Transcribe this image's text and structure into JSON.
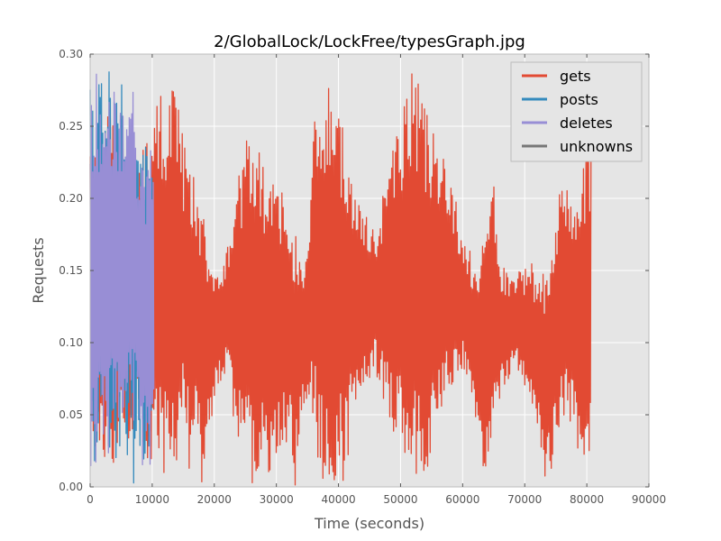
{
  "chart_data": {
    "type": "line",
    "title": "2/GlobalLock/LockFree/typesGraph.jpg",
    "xlabel": "Time (seconds)",
    "ylabel": "Requests",
    "xlim": [
      0,
      90000
    ],
    "ylim": [
      0.0,
      0.3
    ],
    "x_ticks": [
      "0",
      "10000",
      "20000",
      "30000",
      "40000",
      "50000",
      "60000",
      "70000",
      "80000",
      "90000"
    ],
    "y_ticks": [
      "0.00",
      "0.05",
      "0.10",
      "0.15",
      "0.20",
      "0.25",
      "0.30"
    ],
    "grid": true,
    "legend_position": "top-right",
    "series": [
      {
        "name": "gets",
        "color": "#E24A33",
        "x": [
          0,
          1000,
          2000,
          3000,
          4000,
          5000,
          6000,
          7000,
          8000,
          9000,
          10000,
          11000,
          12000,
          13000,
          14000,
          15000,
          16000,
          17000,
          18000,
          19000,
          20000,
          21000,
          22000,
          23000,
          24000,
          25000,
          26000,
          27000,
          28000,
          29000,
          30000,
          31000,
          32000,
          33000,
          34000,
          35000,
          36000,
          37000,
          38000,
          39000,
          40000,
          41000,
          42000,
          43000,
          44000,
          45000,
          46000,
          47000,
          48000,
          49000,
          50000,
          51000,
          52000,
          53000,
          54000,
          55000,
          56000,
          57000,
          58000,
          59000,
          60000,
          61000,
          62000,
          63000,
          64000,
          65000,
          66000,
          67000,
          68000,
          69000,
          70000,
          71000,
          72000,
          73000,
          74000,
          75000,
          76000,
          77000,
          78000,
          79000,
          80000,
          80700
        ],
        "lo": [
          0.02,
          0.01,
          0.03,
          0.0,
          0.02,
          0.0,
          0.03,
          0.04,
          0.05,
          0.02,
          0.0,
          0.01,
          0.0,
          0.0,
          0.02,
          0.04,
          0.01,
          0.04,
          0.0,
          0.03,
          0.06,
          0.07,
          0.08,
          0.05,
          0.02,
          0.01,
          0.0,
          0.01,
          0.02,
          0.0,
          0.02,
          0.03,
          0.03,
          0.0,
          0.05,
          0.06,
          0.04,
          0.0,
          0.01,
          0.0,
          0.01,
          0.0,
          0.03,
          0.05,
          0.06,
          0.07,
          0.08,
          0.06,
          0.05,
          0.03,
          0.02,
          0.01,
          0.0,
          0.0,
          0.01,
          0.02,
          0.04,
          0.05,
          0.06,
          0.07,
          0.08,
          0.07,
          0.05,
          0.02,
          0.0,
          0.04,
          0.06,
          0.07,
          0.08,
          0.08,
          0.07,
          0.06,
          0.04,
          0.01,
          0.0,
          0.03,
          0.05,
          0.04,
          0.03,
          0.02,
          0.01,
          0.03
        ],
        "hi": [
          0.24,
          0.23,
          0.25,
          0.26,
          0.25,
          0.27,
          0.24,
          0.23,
          0.24,
          0.25,
          0.25,
          0.27,
          0.28,
          0.28,
          0.27,
          0.24,
          0.23,
          0.22,
          0.2,
          0.17,
          0.15,
          0.15,
          0.17,
          0.18,
          0.22,
          0.24,
          0.25,
          0.26,
          0.22,
          0.22,
          0.21,
          0.21,
          0.19,
          0.18,
          0.15,
          0.17,
          0.25,
          0.28,
          0.27,
          0.29,
          0.27,
          0.25,
          0.23,
          0.21,
          0.2,
          0.18,
          0.18,
          0.2,
          0.22,
          0.24,
          0.26,
          0.28,
          0.29,
          0.28,
          0.26,
          0.26,
          0.24,
          0.23,
          0.21,
          0.2,
          0.17,
          0.17,
          0.15,
          0.16,
          0.2,
          0.21,
          0.16,
          0.15,
          0.15,
          0.15,
          0.15,
          0.16,
          0.14,
          0.15,
          0.17,
          0.2,
          0.21,
          0.21,
          0.2,
          0.22,
          0.23,
          0.25
        ]
      },
      {
        "name": "posts",
        "color": "#348ABD",
        "x": [
          0,
          500,
          1000,
          1500,
          2000,
          2500,
          3000,
          3500,
          4000,
          4500,
          5000,
          5500,
          6000,
          6500,
          7000,
          7500,
          8000,
          8500,
          9000,
          9500,
          10000
        ],
        "lo": [
          0.0,
          0.01,
          0.0,
          0.03,
          0.0,
          0.07,
          0.0,
          0.04,
          0.0,
          0.03,
          0.0,
          0.05,
          0.0,
          0.06,
          0.0,
          0.04,
          0.02,
          0.0,
          0.01,
          0.0,
          0.02
        ],
        "hi": [
          0.28,
          0.26,
          0.27,
          0.29,
          0.28,
          0.25,
          0.29,
          0.27,
          0.28,
          0.3,
          0.29,
          0.27,
          0.28,
          0.25,
          0.29,
          0.24,
          0.22,
          0.25,
          0.24,
          0.24,
          0.22
        ]
      },
      {
        "name": "deletes",
        "color": "#988ED5",
        "x": [
          0,
          500,
          1000,
          1500,
          2000,
          2500,
          3000,
          3500,
          4000,
          4500,
          5000,
          5500,
          6000,
          6500,
          7000,
          7500,
          8000,
          8500,
          9000,
          9500,
          10000,
          10300
        ],
        "lo": [
          0.0,
          0.02,
          0.01,
          0.03,
          0.02,
          0.05,
          0.01,
          0.06,
          0.04,
          0.02,
          0.0,
          0.05,
          0.07,
          0.05,
          0.03,
          0.06,
          0.04,
          0.01,
          0.02,
          0.0,
          0.03,
          0.05
        ],
        "hi": [
          0.28,
          0.25,
          0.29,
          0.27,
          0.28,
          0.25,
          0.27,
          0.26,
          0.29,
          0.27,
          0.28,
          0.26,
          0.25,
          0.28,
          0.29,
          0.24,
          0.23,
          0.25,
          0.22,
          0.23,
          0.24,
          0.21
        ]
      },
      {
        "name": "unknowns",
        "color": "#777777",
        "x": [],
        "lo": [],
        "hi": []
      }
    ]
  }
}
